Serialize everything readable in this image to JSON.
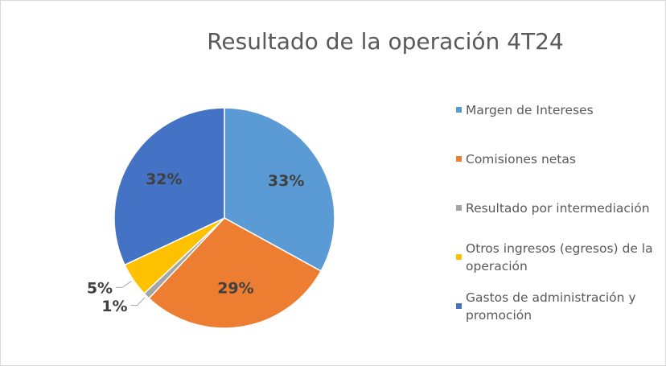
{
  "chart_data": {
    "type": "pie",
    "title": "Resultado de la operación 4T24",
    "categories": [
      "Margen de Intereses",
      "Comisiones netas",
      "Resultado por intermediación",
      "Otros ingresos (egresos) de la operación",
      "Gastos de administración y promoción"
    ],
    "values": [
      33,
      29,
      1,
      5,
      32
    ],
    "value_labels": [
      "33%",
      "29%",
      "1%",
      "5%",
      "32%"
    ],
    "colors": [
      "#5b9bd5",
      "#ed7d31",
      "#a5a5a5",
      "#ffc000",
      "#4472c4"
    ],
    "legend": "right"
  }
}
